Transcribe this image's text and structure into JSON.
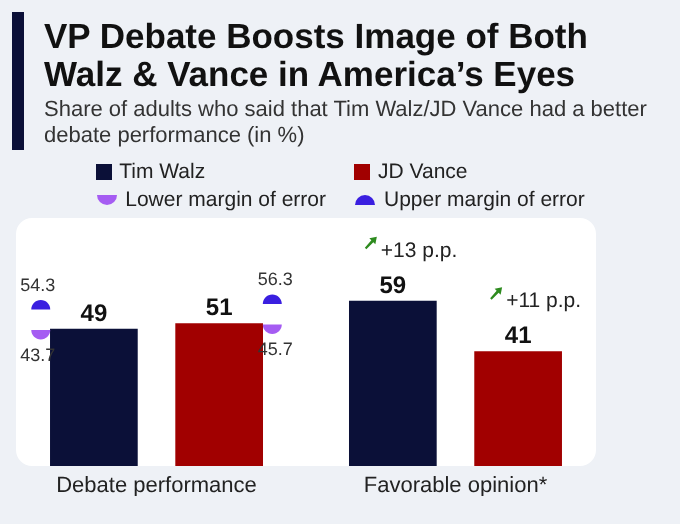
{
  "chart_data": {
    "type": "bar",
    "title": "VP Debate Boosts Image of Both Walz & Vance in America’s Eyes",
    "subtitle": "Share of adults who said that Tim Walz/JD Vance had a better debate performance (in %)",
    "categories": [
      "Debate performance",
      "Favorable opinion*"
    ],
    "data_labels": true,
    "legend": "top",
    "series": [
      {
        "name": "Tim Walz",
        "color": "#0b1038",
        "values": [
          49,
          59
        ]
      },
      {
        "name": "JD Vance",
        "color": "#a10000",
        "values": [
          51,
          41
        ]
      }
    ],
    "annotations": [
      "Lower margin of error",
      "Upper margin of error",
      "54.3",
      "43.7",
      "56.3",
      "45.7",
      "+13 p.p.",
      "+11 p.p."
    ]
  }
}
